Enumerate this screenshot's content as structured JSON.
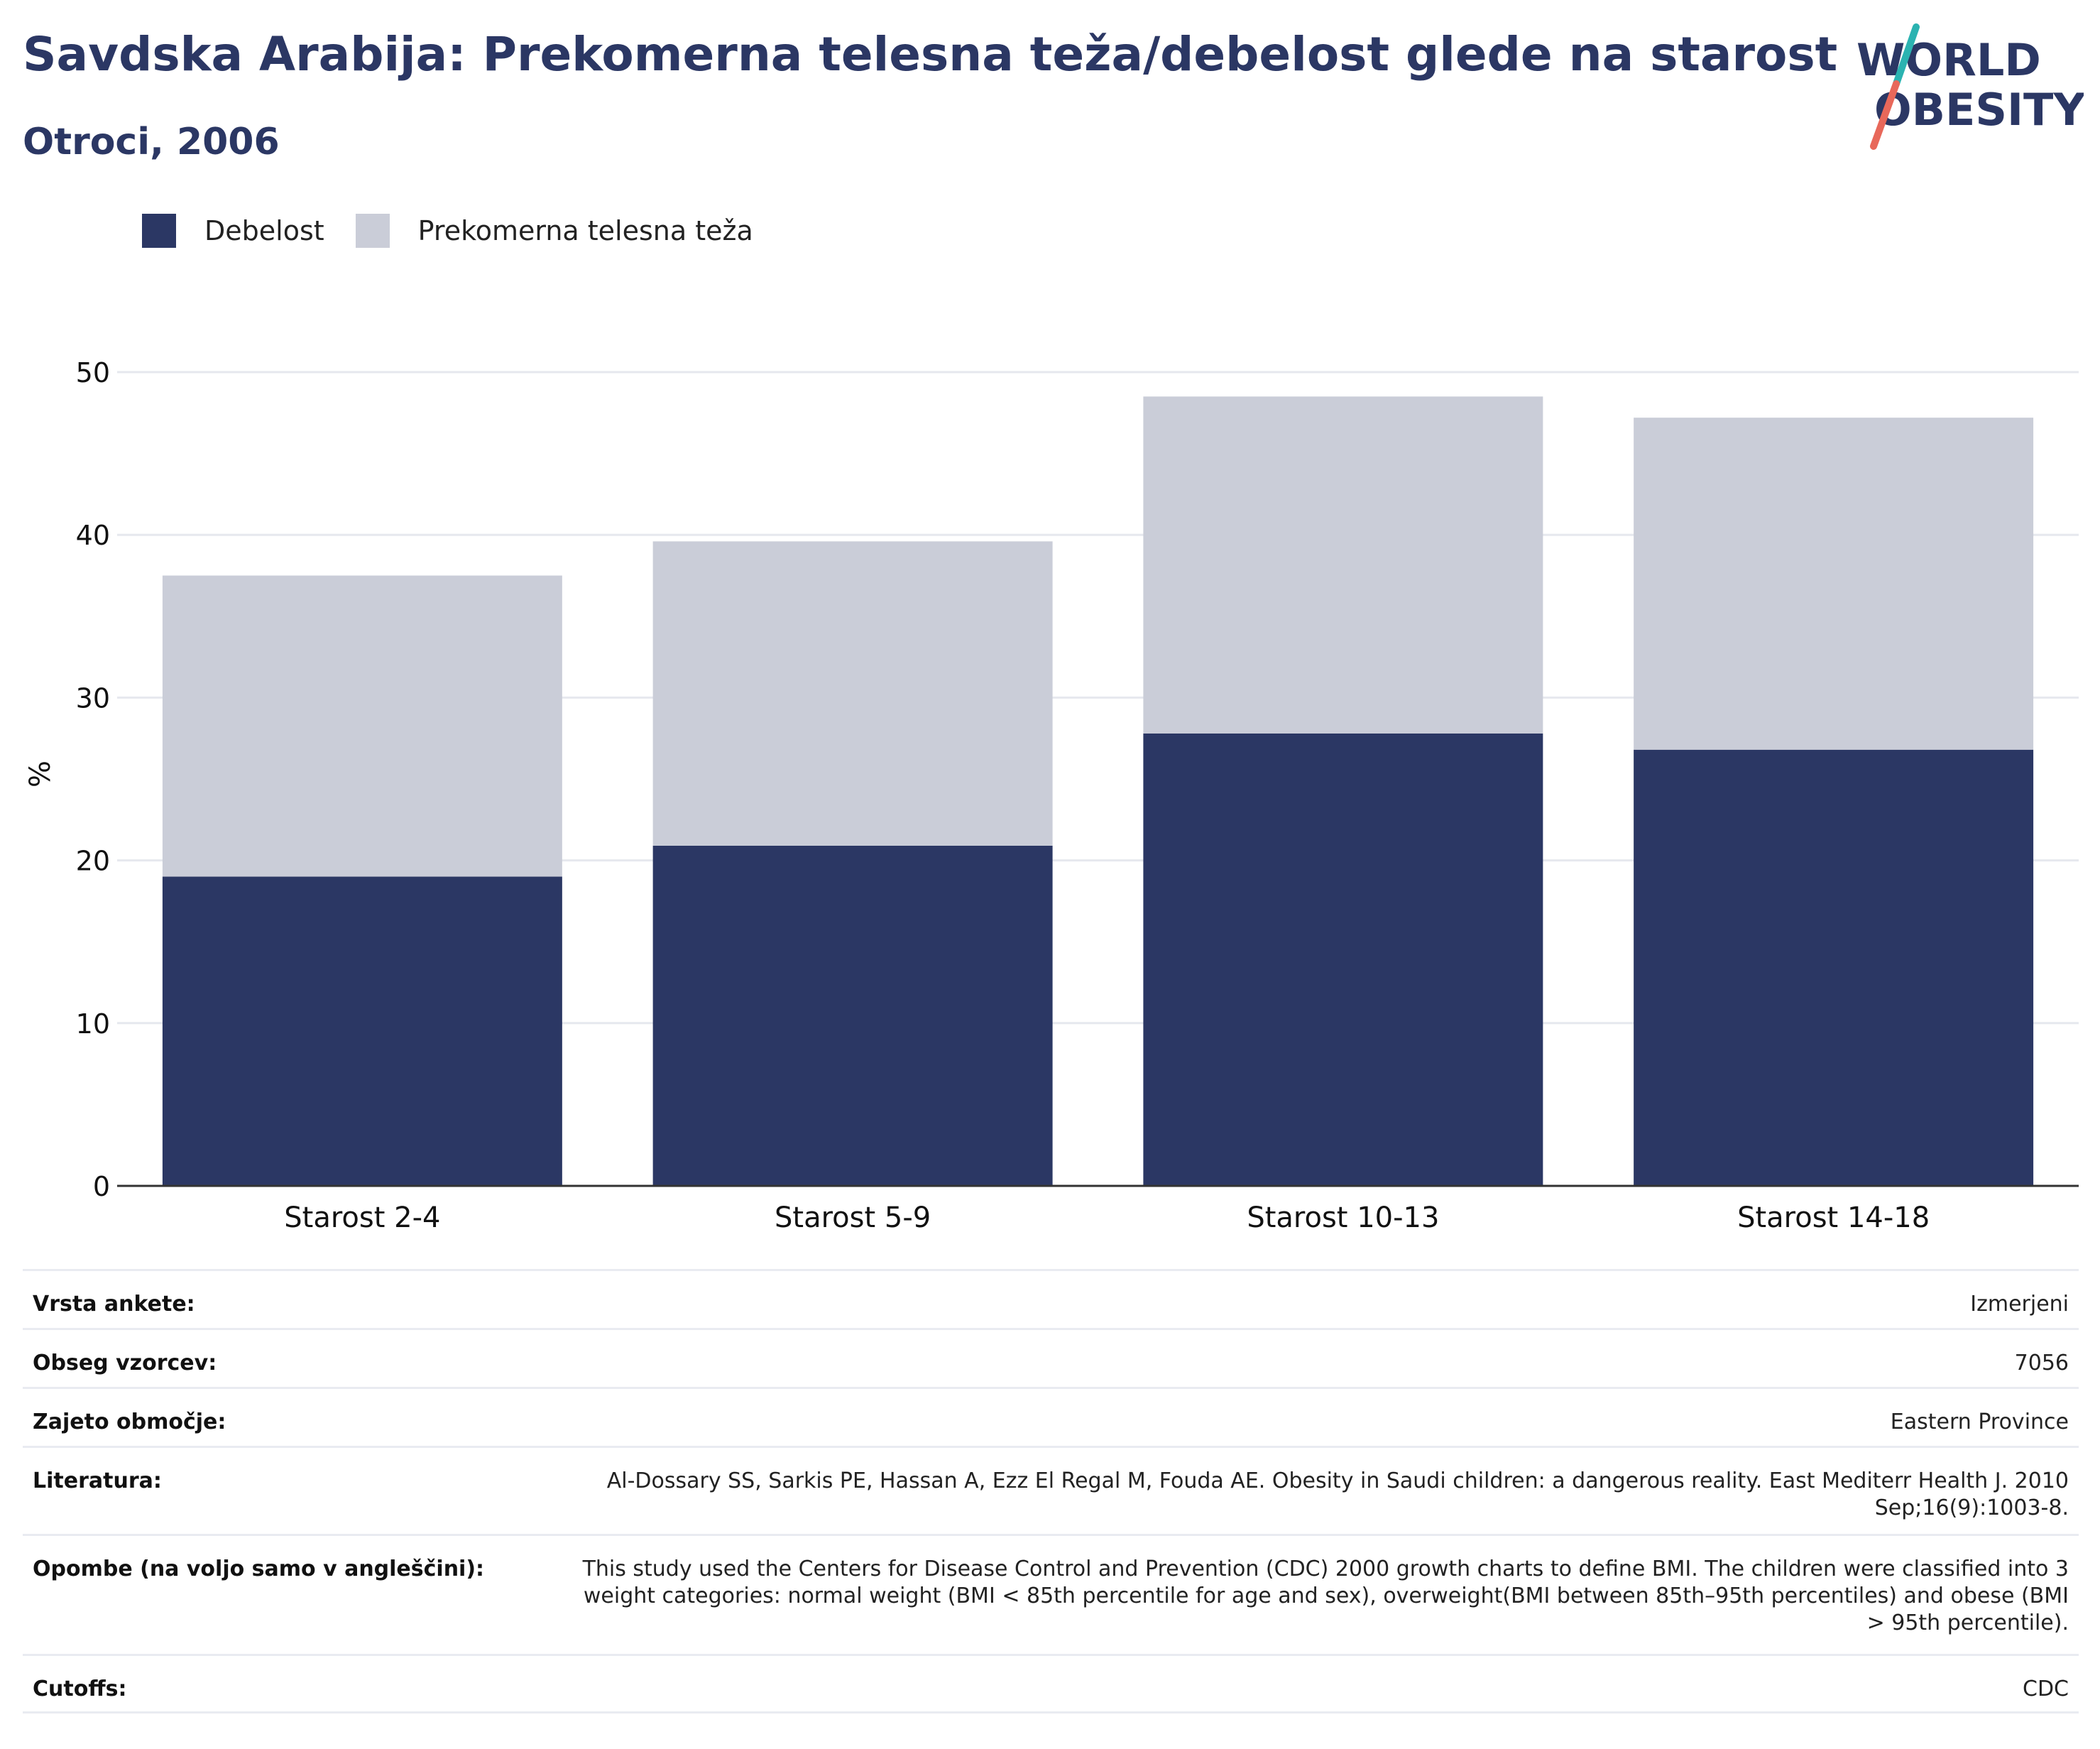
{
  "header": {
    "title": "Savdska Arabija: Prekomerna telesna teža/debelost glede na starost",
    "subtitle": "Otroci, 2006"
  },
  "logo": {
    "line1": "WORLD",
    "line2": "OBESITY"
  },
  "colors": {
    "obesity": "#2b3764",
    "overweight": "#cacdd8",
    "grid": "#e6e8ee",
    "axis": "#333333"
  },
  "chart_data": {
    "type": "bar",
    "stacked": true,
    "categories": [
      "Starost 2-4",
      "Starost 5-9",
      "Starost 10-13",
      "Starost 14-18"
    ],
    "series": [
      {
        "name": "Debelost",
        "values": [
          19.0,
          20.9,
          27.8,
          26.8
        ]
      },
      {
        "name": "Prekomerna telesna teža",
        "values": [
          18.5,
          18.7,
          20.7,
          20.4
        ]
      }
    ],
    "ylabel": "%",
    "ylim": [
      0,
      50
    ],
    "yticks": [
      0,
      10,
      20,
      30,
      40,
      50
    ],
    "grid": true,
    "legend_position": "top-left"
  },
  "info": [
    {
      "label": "Vrsta ankete:",
      "value": "Izmerjeni"
    },
    {
      "label": "Obseg vzorcev:",
      "value": "7056"
    },
    {
      "label": "Zajeto območje:",
      "value": "Eastern Province"
    },
    {
      "label": "Literatura:",
      "value": "Al-Dossary SS, Sarkis PE, Hassan A, Ezz El Regal M, Fouda AE. Obesity in Saudi children: a dangerous reality. East Mediterr Health J. 2010 Sep;16(9):1003-8."
    },
    {
      "label": "Opombe (na voljo samo v angleščini):",
      "value": "This study used the Centers for Disease Control and Prevention (CDC) 2000 growth charts to define BMI. The children were classified into 3 weight categories: normal weight (BMI < 85th percentile for age and sex), overweight(BMI between 85th–95th percentiles) and obese (BMI > 95th percentile)."
    },
    {
      "label": "Cutoffs:",
      "value": "CDC"
    }
  ]
}
